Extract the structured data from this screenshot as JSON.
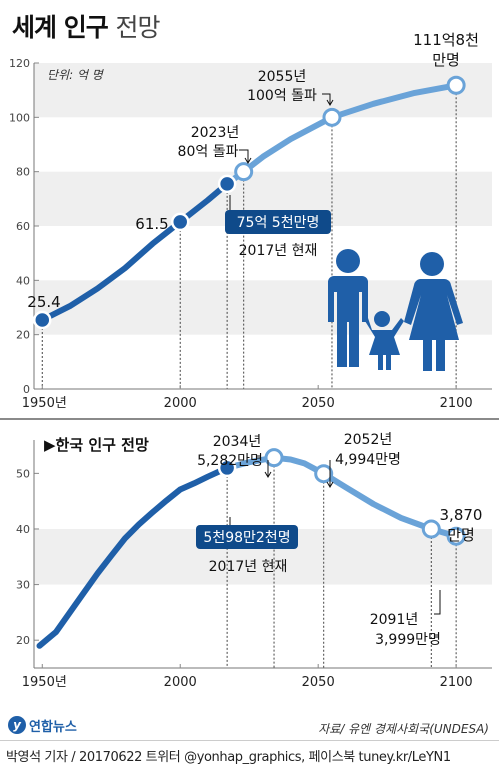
{
  "title_main": "세계 인구",
  "title_sub": "전망",
  "logo_text": "연합뉴스",
  "logo_letter": "y",
  "source_note": "자료/ 유엔 경제사회국(UNDESA)",
  "credit": "박영석 기자 / 20170622   트위터 @yonhap_graphics, 페이스북 tuney.kr/LeYN1",
  "chart_data": [
    {
      "type": "line",
      "unit_label": "단위: 억 명",
      "x_ticks": [
        "1950년",
        "2000",
        "2050",
        "2100"
      ],
      "x_tick_values": [
        1950,
        2000,
        2050,
        2100
      ],
      "y_ticks": [
        0,
        20,
        40,
        60,
        80,
        100,
        120
      ],
      "xlim": [
        1947,
        2113
      ],
      "ylim": [
        0,
        120
      ],
      "grid": "horizontal bands",
      "colors": {
        "historical": "#1f5fa8",
        "projection": "#6aa3d8",
        "band": "#efefef",
        "dark": "#0f4a8a"
      },
      "series": [
        {
          "x": [
            1950,
            1960,
            1970,
            1980,
            1990,
            2000,
            2010,
            2017
          ],
          "y": [
            25.4,
            30.5,
            37,
            44.5,
            53.5,
            61.5,
            69.5,
            75.5
          ]
        },
        {
          "x": [
            2017,
            2023,
            2030,
            2040,
            2055,
            2070,
            2085,
            2100
          ],
          "y": [
            75.5,
            80,
            85.5,
            92,
            100,
            105,
            109,
            111.8
          ]
        }
      ],
      "markers": [
        {
          "x": 1950,
          "y": 25.4,
          "style": "filled"
        },
        {
          "x": 2000,
          "y": 61.5,
          "style": "filled"
        },
        {
          "x": 2017,
          "y": 75.5,
          "style": "filled"
        },
        {
          "x": 2023,
          "y": 80,
          "style": "open"
        },
        {
          "x": 2055,
          "y": 100,
          "style": "open"
        },
        {
          "x": 2100,
          "y": 111.8,
          "style": "open"
        }
      ],
      "annotations": {
        "v1950": "25.4",
        "v2000": "61.5",
        "a2023_year": "2023년",
        "a2023_text": "80억 돌파",
        "a2055_year": "2055년",
        "a2055_text": "100억 돌파",
        "a2100_line1": "111억8천",
        "a2100_line2": "만명",
        "current_box": "75억 5천만명",
        "current_text": "2017년 현재"
      }
    },
    {
      "type": "line",
      "section_title": "▶한국 인구 전망",
      "x_ticks": [
        "1950년",
        "2000",
        "2050",
        "2100"
      ],
      "x_tick_values": [
        1950,
        2000,
        2050,
        2100
      ],
      "y_ticks": [
        20,
        30,
        40,
        50
      ],
      "xlim": [
        1947,
        2113
      ],
      "ylim": [
        15,
        56
      ],
      "grid": "horizontal bands",
      "colors": {
        "historical": "#1f5fa8",
        "projection": "#6aa3d8",
        "band": "#efefef",
        "dark": "#0f4a8a"
      },
      "series": [
        {
          "x": [
            1949,
            1955,
            1960,
            1965,
            1970,
            1975,
            1980,
            1985,
            1990,
            1995,
            2000,
            2005,
            2010,
            2017
          ],
          "y": [
            19,
            21.5,
            25,
            28.5,
            32,
            35.2,
            38.3,
            40.8,
            43,
            45.1,
            47.1,
            48.2,
            49.4,
            50.98
          ]
        },
        {
          "x": [
            2017,
            2025,
            2034,
            2040,
            2045,
            2052,
            2060,
            2070,
            2080,
            2091,
            2100
          ],
          "y": [
            50.98,
            52,
            52.82,
            52.5,
            51.8,
            49.94,
            47.5,
            44.5,
            42,
            39.99,
            38.7
          ]
        }
      ],
      "markers": [
        {
          "x": 2017,
          "y": 50.98,
          "style": "filled"
        },
        {
          "x": 2034,
          "y": 52.82,
          "style": "open"
        },
        {
          "x": 2052,
          "y": 49.94,
          "style": "open"
        },
        {
          "x": 2091,
          "y": 39.99,
          "style": "open"
        },
        {
          "x": 2100,
          "y": 38.7,
          "style": "open"
        }
      ],
      "annotations": {
        "a2034_year": "2034년",
        "a2034_text": "5,282만명",
        "a2052_year": "2052년",
        "a2052_text": "4,994만명",
        "a2100_line1": "3,870",
        "a2100_line2": "만명",
        "a2091_year": "2091년",
        "a2091_text": "3,999만명",
        "current_box": "5천98만2천명",
        "current_text": "2017년 현재"
      }
    }
  ]
}
